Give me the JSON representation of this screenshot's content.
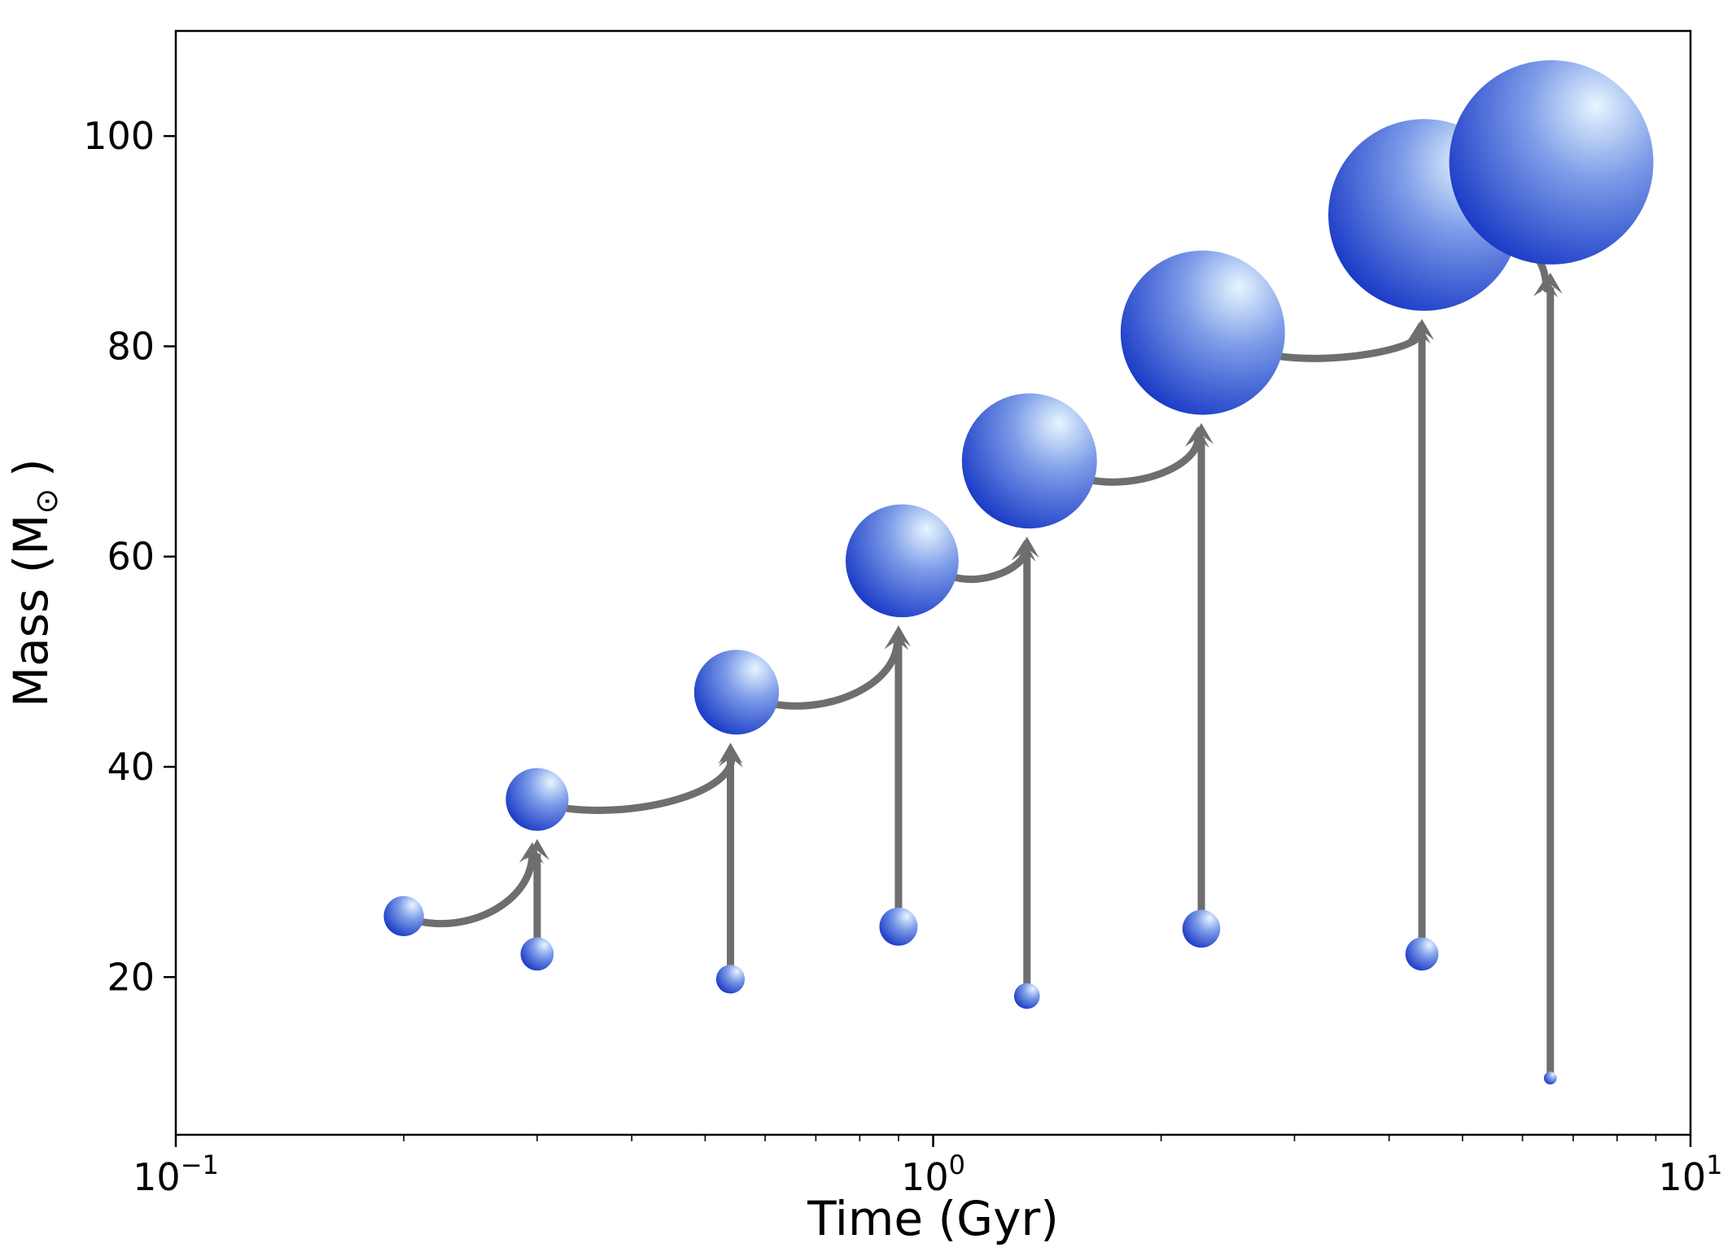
{
  "chart_data": {
    "type": "scatter",
    "xlabel": "Time (Gyr)",
    "ylabel_text": "Mass (M",
    "ylabel_sub": "⊙",
    "ylabel_close": ")",
    "xscale": "log",
    "xlim": [
      0.1,
      10
    ],
    "ylim": [
      5,
      110
    ],
    "grid": false,
    "x_ticks": [
      {
        "value": 0.1,
        "base": "10",
        "exp": "−1"
      },
      {
        "value": 1,
        "base": "10",
        "exp": "0"
      },
      {
        "value": 10,
        "base": "10",
        "exp": "1"
      }
    ],
    "y_ticks": [
      {
        "value": 20,
        "label": "20"
      },
      {
        "value": 40,
        "label": "40"
      },
      {
        "value": 60,
        "label": "60"
      },
      {
        "value": 80,
        "label": "80"
      },
      {
        "value": 100,
        "label": "100"
      }
    ],
    "main_sequence": [
      {
        "t": 0.2,
        "m": 25.8
      },
      {
        "t": 0.3,
        "m": 36.9
      },
      {
        "t": 0.55,
        "m": 47.1
      },
      {
        "t": 0.91,
        "m": 59.6
      },
      {
        "t": 1.34,
        "m": 69.1
      },
      {
        "t": 2.27,
        "m": 81.3
      },
      {
        "t": 4.45,
        "m": 92.5
      },
      {
        "t": 6.55,
        "m": 97.5
      }
    ],
    "secondaries": [
      {
        "t": 0.3,
        "m": 22.2
      },
      {
        "t": 0.54,
        "m": 19.8
      },
      {
        "t": 0.9,
        "m": 24.8
      },
      {
        "t": 1.33,
        "m": 18.2
      },
      {
        "t": 2.26,
        "m": 24.6
      },
      {
        "t": 4.42,
        "m": 22.2
      },
      {
        "t": 6.53,
        "m": 10.4
      }
    ],
    "colors": {
      "arrow": "#6e6e6e",
      "sphere_highlight": "#e6f6ff",
      "sphere_mid": "#7d9ce8",
      "sphere_edge": "#1232c4"
    }
  }
}
